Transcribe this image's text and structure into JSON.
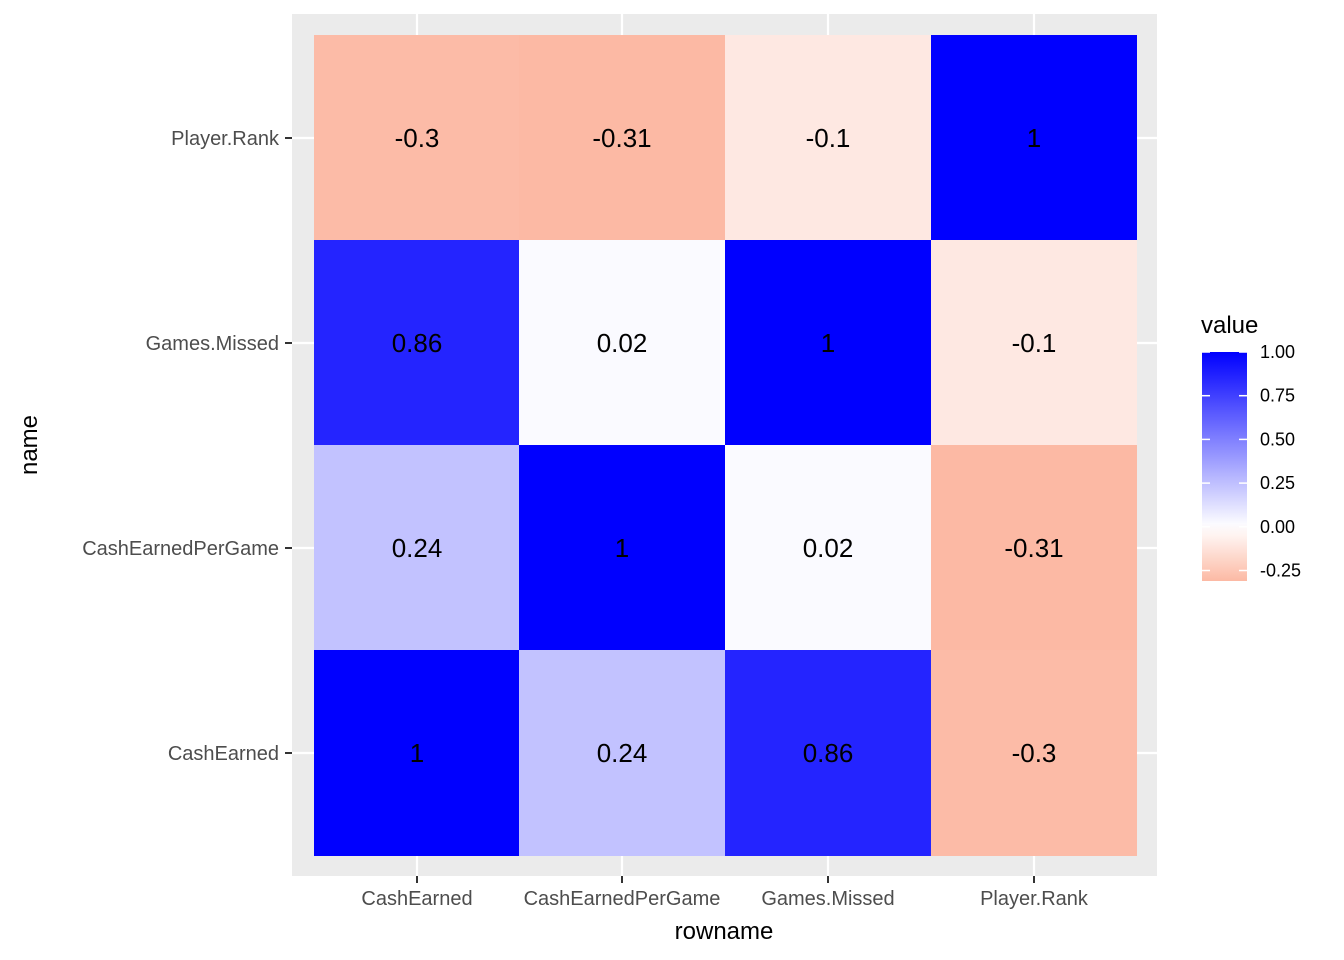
{
  "chart_data": {
    "type": "heatmap",
    "xlabel": "rowname",
    "ylabel": "name",
    "x_categories": [
      "CashEarned",
      "CashEarnedPerGame",
      "Games.Missed",
      "Player.Rank"
    ],
    "y_categories": [
      "CashEarned",
      "CashEarnedPerGame",
      "Games.Missed",
      "Player.Rank"
    ],
    "cells": [
      {
        "x": "CashEarned",
        "y": "CashEarned",
        "value": 1,
        "label": "1"
      },
      {
        "x": "CashEarnedPerGame",
        "y": "CashEarned",
        "value": 0.24,
        "label": "0.24"
      },
      {
        "x": "Games.Missed",
        "y": "CashEarned",
        "value": 0.86,
        "label": "0.86"
      },
      {
        "x": "Player.Rank",
        "y": "CashEarned",
        "value": -0.3,
        "label": "-0.3"
      },
      {
        "x": "CashEarned",
        "y": "CashEarnedPerGame",
        "value": 0.24,
        "label": "0.24"
      },
      {
        "x": "CashEarnedPerGame",
        "y": "CashEarnedPerGame",
        "value": 1,
        "label": "1"
      },
      {
        "x": "Games.Missed",
        "y": "CashEarnedPerGame",
        "value": 0.02,
        "label": "0.02"
      },
      {
        "x": "Player.Rank",
        "y": "CashEarnedPerGame",
        "value": -0.31,
        "label": "-0.31"
      },
      {
        "x": "CashEarned",
        "y": "Games.Missed",
        "value": 0.86,
        "label": "0.86"
      },
      {
        "x": "CashEarnedPerGame",
        "y": "Games.Missed",
        "value": 0.02,
        "label": "0.02"
      },
      {
        "x": "Games.Missed",
        "y": "Games.Missed",
        "value": 1,
        "label": "1"
      },
      {
        "x": "Player.Rank",
        "y": "Games.Missed",
        "value": -0.1,
        "label": "-0.1"
      },
      {
        "x": "CashEarned",
        "y": "Player.Rank",
        "value": -0.3,
        "label": "-0.3"
      },
      {
        "x": "CashEarnedPerGame",
        "y": "Player.Rank",
        "value": -0.31,
        "label": "-0.31"
      },
      {
        "x": "Games.Missed",
        "y": "Player.Rank",
        "value": -0.1,
        "label": "-0.1"
      },
      {
        "x": "Player.Rank",
        "y": "Player.Rank",
        "value": 1,
        "label": "1"
      }
    ],
    "legend": {
      "title": "value",
      "placement": "right",
      "ticks": [
        {
          "value": 1.0,
          "label": "1.00"
        },
        {
          "value": 0.75,
          "label": "0.75"
        },
        {
          "value": 0.5,
          "label": "0.50"
        },
        {
          "value": 0.25,
          "label": "0.25"
        },
        {
          "value": 0.0,
          "label": "0.00"
        },
        {
          "value": -0.25,
          "label": "-0.25"
        }
      ],
      "range": [
        -0.31,
        1.0
      ]
    },
    "colors": {
      "low": "#fcb9a4",
      "mid": "#ffffff",
      "high": "#0000ff",
      "panel_background": "#ebebeb",
      "grid": "#ffffff"
    },
    "grid": true
  }
}
